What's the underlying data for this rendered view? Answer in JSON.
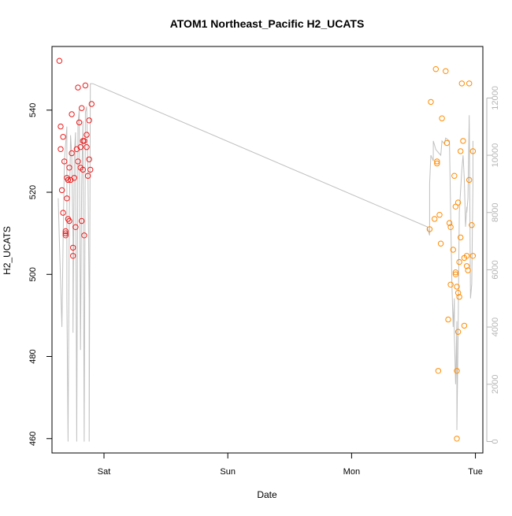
{
  "chart_data": {
    "type": "scatter",
    "title": "ATOM1 Northeast_Pacific H2_UCATS",
    "xlabel": "Date",
    "ylabel": "H2_UCATS",
    "x_ticks": [
      "Sat",
      "Sun",
      "Mon",
      "Tue"
    ],
    "y_ticks": [
      460,
      480,
      500,
      520,
      540
    ],
    "y2_ticks": [
      0,
      2000,
      4000,
      6000,
      8000,
      10000,
      12000
    ],
    "xlim": [
      -0.42,
      3.06
    ],
    "ylim": [
      456.5,
      555.5
    ],
    "y2lim": [
      -400,
      13800
    ],
    "colors": {
      "series1": "#ee1c1c",
      "series2": "#ff8c00",
      "altitude_line": "#c0c0c0",
      "right_axis": "#b5b5b5",
      "frame": "#000000"
    },
    "series": [
      {
        "color": "red",
        "points": [
          [
            -0.36,
            552
          ],
          [
            -0.35,
            536
          ],
          [
            -0.35,
            530.5
          ],
          [
            -0.34,
            520.5
          ],
          [
            -0.33,
            515
          ],
          [
            -0.33,
            533.5
          ],
          [
            -0.32,
            527.5
          ],
          [
            -0.31,
            510
          ],
          [
            -0.31,
            510.5
          ],
          [
            -0.31,
            509.5
          ],
          [
            -0.3,
            518.5
          ],
          [
            -0.3,
            523.5
          ],
          [
            -0.29,
            523
          ],
          [
            -0.29,
            513.5
          ],
          [
            -0.28,
            513
          ],
          [
            -0.28,
            526
          ],
          [
            -0.27,
            523
          ],
          [
            -0.26,
            539
          ],
          [
            -0.26,
            529.5
          ],
          [
            -0.25,
            506.5
          ],
          [
            -0.25,
            504.5
          ],
          [
            -0.24,
            523.5
          ],
          [
            -0.23,
            511.5
          ],
          [
            -0.22,
            530.5
          ],
          [
            -0.21,
            545.5
          ],
          [
            -0.21,
            527.5
          ],
          [
            -0.2,
            537
          ],
          [
            -0.19,
            526
          ],
          [
            -0.19,
            531
          ],
          [
            -0.18,
            540.5
          ],
          [
            -0.18,
            513
          ],
          [
            -0.17,
            532.5
          ],
          [
            -0.17,
            525.5
          ],
          [
            -0.16,
            509.5
          ],
          [
            -0.16,
            532.5
          ],
          [
            -0.15,
            546
          ],
          [
            -0.14,
            531
          ],
          [
            -0.14,
            534
          ],
          [
            -0.13,
            524
          ],
          [
            -0.12,
            537.5
          ],
          [
            -0.12,
            528
          ],
          [
            -0.11,
            525.5
          ],
          [
            -0.1,
            541.5
          ]
        ]
      },
      {
        "color": "orange",
        "points": [
          [
            2.63,
            511
          ],
          [
            2.64,
            542
          ],
          [
            2.67,
            513.5
          ],
          [
            2.68,
            550
          ],
          [
            2.69,
            527.5
          ],
          [
            2.69,
            527
          ],
          [
            2.7,
            476.5
          ],
          [
            2.71,
            514.5
          ],
          [
            2.72,
            507.5
          ],
          [
            2.73,
            538
          ],
          [
            2.76,
            549.5
          ],
          [
            2.77,
            532
          ],
          [
            2.78,
            489
          ],
          [
            2.79,
            512.5
          ],
          [
            2.8,
            511.5
          ],
          [
            2.8,
            497.5
          ],
          [
            2.82,
            506
          ],
          [
            2.83,
            524
          ],
          [
            2.84,
            500.5
          ],
          [
            2.84,
            500
          ],
          [
            2.84,
            516.5
          ],
          [
            2.85,
            497
          ],
          [
            2.85,
            460
          ],
          [
            2.85,
            476.5
          ],
          [
            2.86,
            517.5
          ],
          [
            2.86,
            486
          ],
          [
            2.86,
            495.5
          ],
          [
            2.87,
            503
          ],
          [
            2.87,
            494.5
          ],
          [
            2.88,
            509
          ],
          [
            2.88,
            530
          ],
          [
            2.89,
            546.5
          ],
          [
            2.9,
            532.5
          ],
          [
            2.91,
            504
          ],
          [
            2.91,
            487.5
          ],
          [
            2.93,
            502
          ],
          [
            2.93,
            504.5
          ],
          [
            2.94,
            501
          ],
          [
            2.95,
            546.5
          ],
          [
            2.95,
            523
          ],
          [
            2.97,
            512
          ],
          [
            2.98,
            504.5
          ],
          [
            2.98,
            530
          ]
        ]
      }
    ],
    "altitude_line": [
      [
        -0.37,
        8500
      ],
      [
        -0.36,
        7000
      ],
      [
        -0.34,
        4000
      ],
      [
        -0.33,
        7000
      ],
      [
        -0.32,
        9800
      ],
      [
        -0.3,
        11000
      ],
      [
        -0.3,
        5000
      ],
      [
        -0.29,
        0
      ],
      [
        -0.28,
        8000
      ],
      [
        -0.27,
        10700
      ],
      [
        -0.26,
        10000
      ],
      [
        -0.25,
        7000
      ],
      [
        -0.25,
        3800
      ],
      [
        -0.24,
        10000
      ],
      [
        -0.23,
        10800
      ],
      [
        -0.22,
        0
      ],
      [
        -0.21,
        11100
      ],
      [
        -0.2,
        11600
      ],
      [
        -0.19,
        3200
      ],
      [
        -0.18,
        9000
      ],
      [
        -0.17,
        11200
      ],
      [
        -0.16,
        0
      ],
      [
        -0.15,
        11500
      ],
      [
        -0.14,
        11700
      ],
      [
        -0.13,
        9500
      ],
      [
        -0.12,
        5000
      ],
      [
        -0.12,
        0
      ],
      [
        -0.11,
        12500
      ],
      [
        -0.09,
        12500
      ],
      [
        2.61,
        7500
      ],
      [
        2.63,
        7200
      ],
      [
        2.63,
        9000
      ],
      [
        2.64,
        10000
      ],
      [
        2.66,
        9800
      ],
      [
        2.66,
        10500
      ],
      [
        2.68,
        10200
      ],
      [
        2.7,
        10100
      ],
      [
        2.72,
        10000
      ],
      [
        2.73,
        10500
      ],
      [
        2.75,
        10400
      ],
      [
        2.76,
        10600
      ],
      [
        2.79,
        10500
      ],
      [
        2.8,
        8000
      ],
      [
        2.81,
        5500
      ],
      [
        2.82,
        4000
      ],
      [
        2.83,
        5000
      ],
      [
        2.83,
        3800
      ],
      [
        2.84,
        2000
      ],
      [
        2.85,
        4200
      ],
      [
        2.85,
        400
      ],
      [
        2.86,
        3800
      ],
      [
        2.87,
        8000
      ],
      [
        2.89,
        9500
      ],
      [
        2.9,
        10000
      ],
      [
        2.91,
        9200
      ],
      [
        2.92,
        7500
      ],
      [
        2.93,
        8200
      ],
      [
        2.93,
        8000
      ],
      [
        2.94,
        8500
      ],
      [
        2.95,
        11400
      ],
      [
        2.96,
        5000
      ],
      [
        2.97,
        5500
      ],
      [
        2.98,
        9000
      ],
      [
        2.98,
        10500
      ]
    ]
  }
}
